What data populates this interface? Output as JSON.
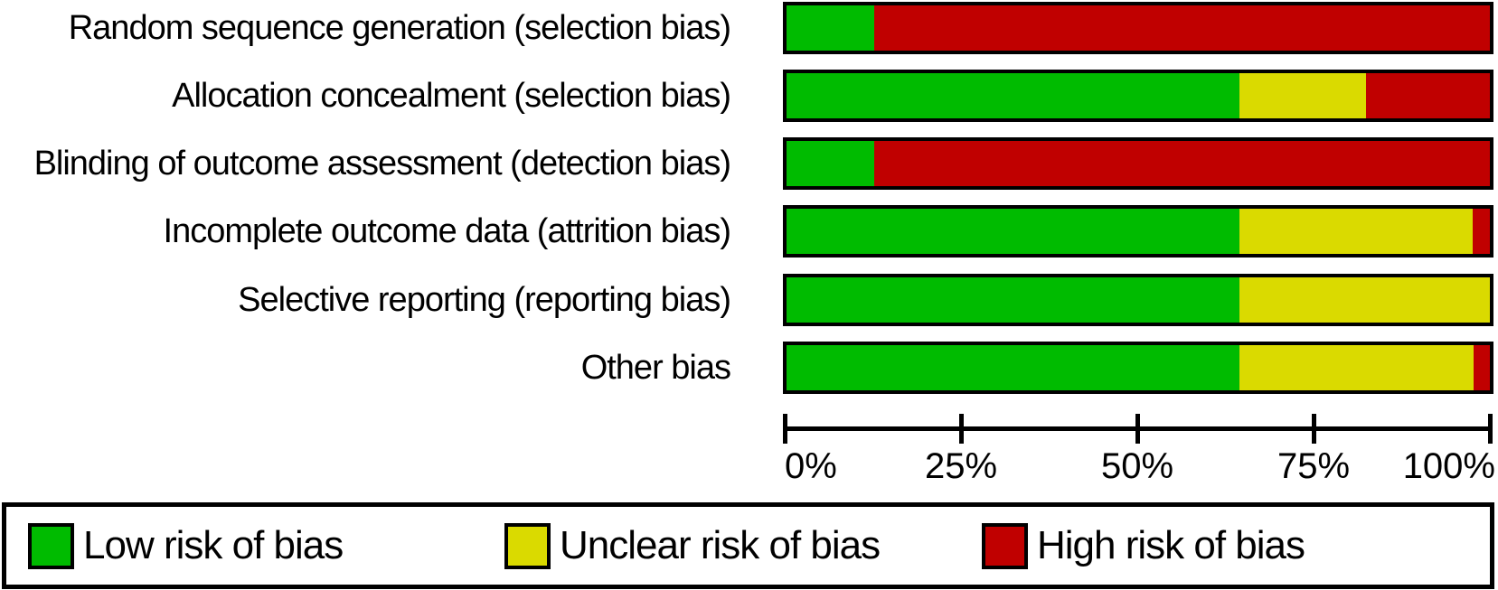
{
  "figure": {
    "background": "#ffffff",
    "text_color": "#000000"
  },
  "chart_data": {
    "type": "bar",
    "orientation": "horizontal-stacked",
    "title": "",
    "xlabel": "",
    "ylabel": "",
    "xlim": [
      0,
      100
    ],
    "grid": false,
    "legend_position": "bottom",
    "categories": [
      "Random sequence generation (selection bias)",
      "Allocation concealment (selection bias)",
      "Blinding of outcome assessment (detection bias)",
      "Incomplete outcome data (attrition bias)",
      "Selective reporting (reporting bias)",
      "Other bias"
    ],
    "series": [
      {
        "name": "Low risk of bias",
        "color": "#00BB00",
        "values": [
          12.5,
          64.4,
          12.5,
          64.4,
          64.4,
          64.4
        ]
      },
      {
        "name": "Unclear risk of bias",
        "color": "#DADA00",
        "values": [
          0,
          18.0,
          0,
          33.2,
          35.6,
          33.3
        ]
      },
      {
        "name": "High risk of bias",
        "color": "#C00000",
        "values": [
          87.5,
          17.6,
          87.5,
          2.4,
          0,
          2.3
        ]
      }
    ],
    "x_ticks": [
      "0%",
      "25%",
      "50%",
      "75%",
      "100%"
    ]
  }
}
